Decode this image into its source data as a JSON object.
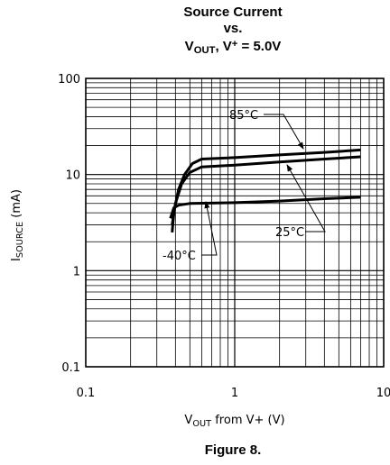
{
  "chart_data": {
    "type": "line",
    "title": [
      "Source Current",
      "vs.",
      [
        {
          "text": "V"
        },
        {
          "text": "OUT",
          "sub": true
        },
        {
          "text": ", V"
        },
        {
          "text": "+",
          "sup": true
        },
        {
          "text": " = 5.0V"
        }
      ]
    ],
    "y_label": [
      {
        "text": "I"
      },
      {
        "text": "SOURCE",
        "sub": true
      },
      {
        "text": " (mA)"
      }
    ],
    "x_label": [
      {
        "text": "V"
      },
      {
        "text": "OUT",
        "sub": true
      },
      {
        "text": " from V+ (V)"
      }
    ],
    "caption": "Figure 8.",
    "log_x": true,
    "log_y": true,
    "grid": true,
    "xlim": [
      0.1,
      10
    ],
    "ylim": [
      0.1,
      100
    ],
    "xticks": [
      0.1,
      1,
      10
    ],
    "yticks": [
      0.1,
      1,
      10,
      100
    ],
    "xminorticks": [
      0.2,
      0.3,
      0.4,
      0.5,
      0.6,
      0.7,
      0.8,
      0.9,
      2,
      3,
      4,
      5,
      6,
      7,
      8,
      9
    ],
    "yminorticks": [
      0.2,
      0.3,
      0.4,
      0.5,
      0.6,
      0.7,
      0.8,
      0.9,
      2,
      3,
      4,
      5,
      6,
      7,
      8,
      9,
      20,
      30,
      40,
      50,
      60,
      70,
      80,
      90
    ],
    "series": [
      {
        "name": "85°C",
        "color": "#000000",
        "x": [
          0.38,
          0.39,
          0.42,
          0.46,
          0.52,
          0.6,
          1,
          2,
          4,
          7
        ],
        "values": [
          2.5,
          4,
          7,
          10,
          13,
          14.5,
          15,
          16,
          17,
          18
        ]
      },
      {
        "name": "25°C",
        "color": "#000000",
        "x": [
          0.38,
          0.4,
          0.44,
          0.5,
          0.6,
          1,
          2,
          4,
          7
        ],
        "values": [
          3,
          5,
          8,
          10.5,
          12,
          12.5,
          13.5,
          14.5,
          15.3
        ]
      },
      {
        "name": "-40°C",
        "color": "#000000",
        "x": [
          0.37,
          0.39,
          0.42,
          0.5,
          1,
          2,
          4,
          7
        ],
        "values": [
          3.5,
          4.5,
          4.8,
          5,
          5.1,
          5.3,
          5.6,
          5.8
        ]
      }
    ]
  }
}
